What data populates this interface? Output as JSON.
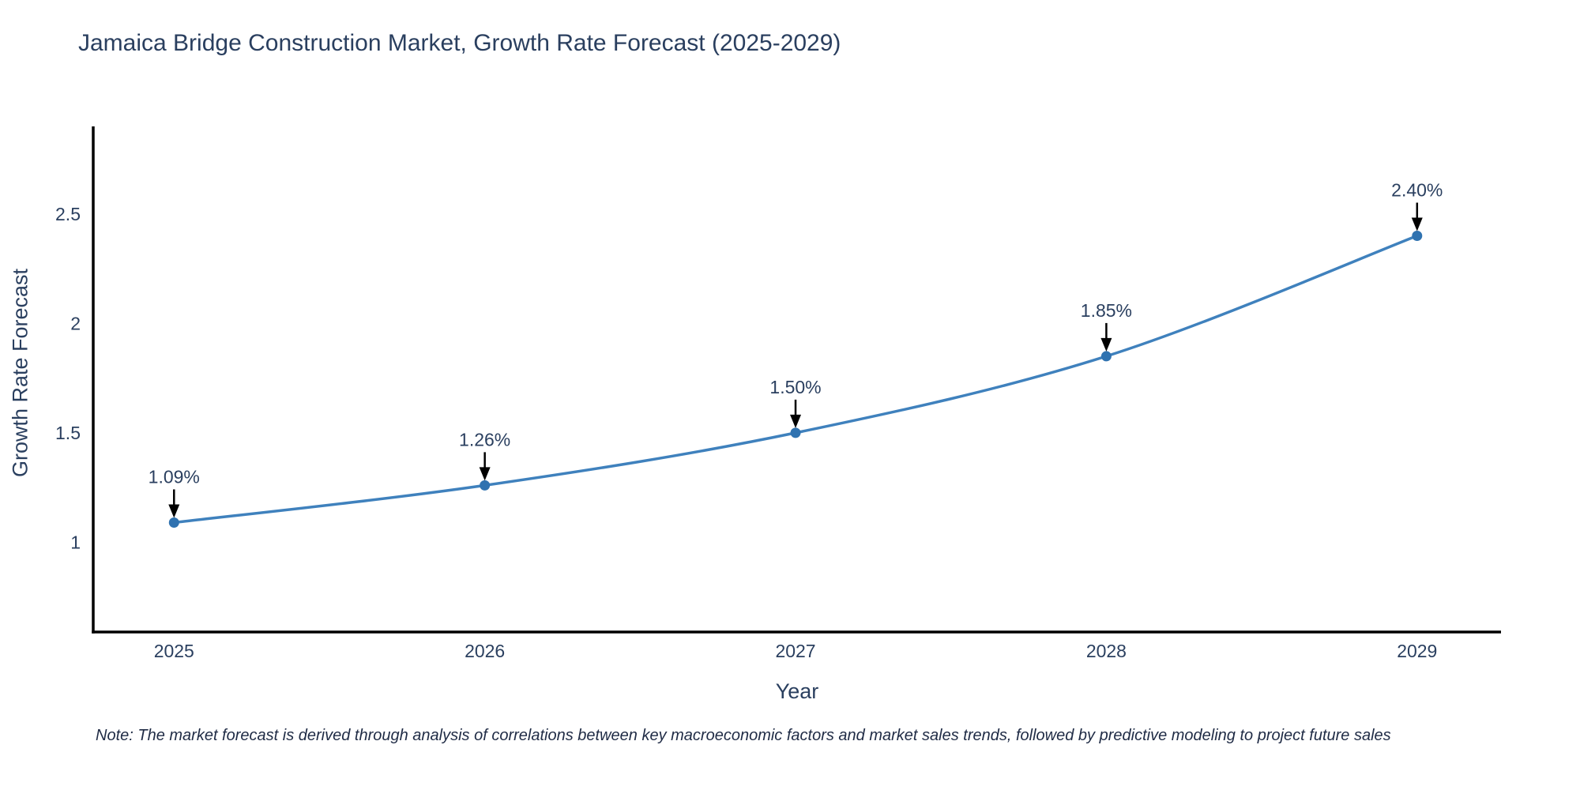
{
  "title": "Jamaica Bridge Construction Market, Growth Rate Forecast (2025-2029)",
  "note": "Note: The market forecast is derived through analysis of correlations between key macroeconomic factors and market sales trends, followed by predictive modeling to project future sales",
  "chart_data": {
    "type": "line",
    "line_shape": "spline",
    "title": "Jamaica Bridge Construction Market, Growth Rate Forecast (2025-2029)",
    "xlabel": "Year",
    "ylabel": "Growth Rate Forecast",
    "categories": [
      "2025",
      "2026",
      "2027",
      "2028",
      "2029"
    ],
    "x": [
      2025,
      2026,
      2027,
      2028,
      2029
    ],
    "values": [
      1.09,
      1.26,
      1.5,
      1.85,
      2.4
    ],
    "point_labels": [
      "1.09%",
      "1.26%",
      "1.50%",
      "1.85%",
      "2.40%"
    ],
    "xlim": [
      2024.74,
      2029.27
    ],
    "ylim": [
      0.59,
      2.9
    ],
    "yticks": [
      1,
      1.5,
      2,
      2.5
    ],
    "ytick_labels": [
      "1",
      "1.5",
      "2",
      "2.5"
    ],
    "grid": false,
    "legend": "none",
    "colors": {
      "line": "#3f81bd",
      "marker": "#2f72b0",
      "axis": "#000000",
      "arrow": "#000000",
      "text": "#2a3f5f"
    }
  }
}
